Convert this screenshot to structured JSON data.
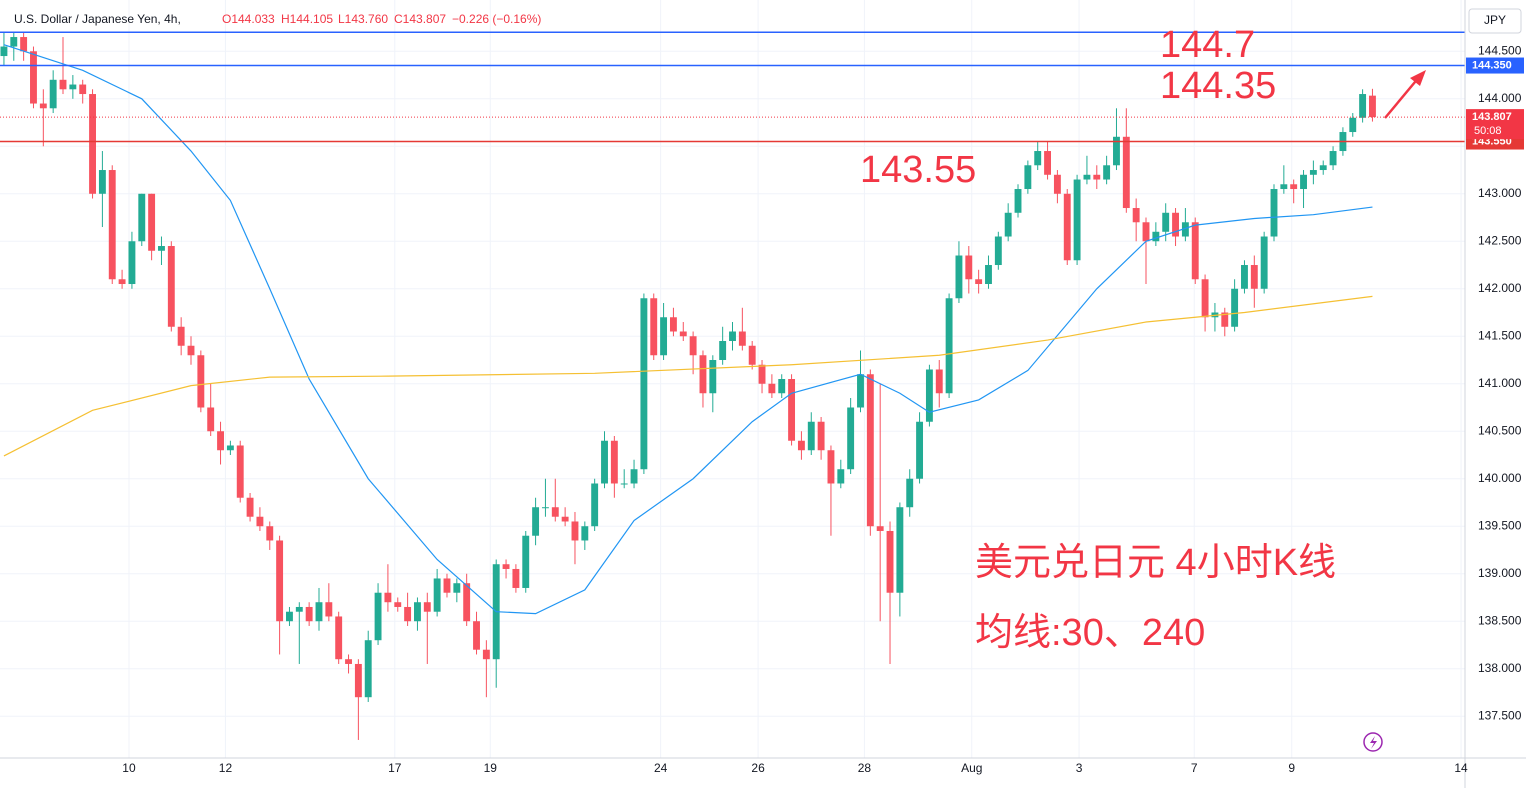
{
  "header": {
    "symbol": "U.S. Dollar / Japanese Yen, 4h,",
    "open": "O144.033",
    "high": "H144.105",
    "low": "L143.760",
    "close": "C143.807",
    "change": "−0.226 (−0.16%)"
  },
  "currency": "JPY",
  "chart_data": {
    "type": "candlestick",
    "up_color": "#22ab94",
    "down_color": "#f7525f",
    "xlim": [
      -0.4,
      148.4
    ],
    "ylim": [
      137.06,
      145.04
    ],
    "xticks": [
      {
        "value": 12.7,
        "label": "10"
      },
      {
        "value": 22.5,
        "label": "12"
      },
      {
        "value": 39.7,
        "label": "17"
      },
      {
        "value": 49.4,
        "label": "19"
      },
      {
        "value": 66.7,
        "label": "24"
      },
      {
        "value": 76.6,
        "label": "26"
      },
      {
        "value": 87.4,
        "label": "28"
      },
      {
        "value": 98.3,
        "label": "Aug"
      },
      {
        "value": 109.2,
        "label": "3"
      },
      {
        "value": 120.9,
        "label": "7"
      },
      {
        "value": 130.8,
        "label": "9"
      },
      {
        "value": 148,
        "label": "14"
      }
    ],
    "yticks": [
      {
        "value": 137.5,
        "label": "137.500"
      },
      {
        "value": 138,
        "label": "138.000"
      },
      {
        "value": 138.5,
        "label": "138.500"
      },
      {
        "value": 139,
        "label": "139.000"
      },
      {
        "value": 139.5,
        "label": "139.500"
      },
      {
        "value": 140,
        "label": "140.000"
      },
      {
        "value": 140.5,
        "label": "140.500"
      },
      {
        "value": 141,
        "label": "141.000"
      },
      {
        "value": 141.5,
        "label": "141.500"
      },
      {
        "value": 142,
        "label": "142.000"
      },
      {
        "value": 142.5,
        "label": "142.500"
      },
      {
        "value": 143,
        "label": "143.000"
      },
      {
        "value": 143.5,
        "label": "143.500"
      },
      {
        "value": 144,
        "label": "144.000"
      },
      {
        "value": 144.5,
        "label": "144.500"
      }
    ],
    "grid": true,
    "candles": [
      [
        144.45,
        144.7,
        144.35,
        144.55
      ],
      [
        144.55,
        144.7,
        144.4,
        144.65
      ],
      [
        144.65,
        144.7,
        144.4,
        144.5
      ],
      [
        144.5,
        144.55,
        143.9,
        143.95
      ],
      [
        143.95,
        144.1,
        143.5,
        143.9
      ],
      [
        143.9,
        144.3,
        143.85,
        144.2
      ],
      [
        144.2,
        144.65,
        144.05,
        144.1
      ],
      [
        144.1,
        144.25,
        144.0,
        144.15
      ],
      [
        144.15,
        144.2,
        143.95,
        144.05
      ],
      [
        144.05,
        144.1,
        142.95,
        143.0
      ],
      [
        143.0,
        143.45,
        142.65,
        143.25
      ],
      [
        143.25,
        143.3,
        142.05,
        142.1
      ],
      [
        142.1,
        142.2,
        142.0,
        142.05
      ],
      [
        142.05,
        142.6,
        142.0,
        142.5
      ],
      [
        142.5,
        143.0,
        142.45,
        143.0
      ],
      [
        143.0,
        143.0,
        142.3,
        142.4
      ],
      [
        142.4,
        142.55,
        142.25,
        142.45
      ],
      [
        142.45,
        142.5,
        141.55,
        141.6
      ],
      [
        141.6,
        141.7,
        141.3,
        141.4
      ],
      [
        141.4,
        141.5,
        141.2,
        141.3
      ],
      [
        141.3,
        141.35,
        140.7,
        140.75
      ],
      [
        140.75,
        141.0,
        140.45,
        140.5
      ],
      [
        140.5,
        140.6,
        140.15,
        140.3
      ],
      [
        140.3,
        140.4,
        140.25,
        140.35
      ],
      [
        140.35,
        140.4,
        139.75,
        139.8
      ],
      [
        139.8,
        139.85,
        139.55,
        139.6
      ],
      [
        139.6,
        139.7,
        139.45,
        139.5
      ],
      [
        139.5,
        139.55,
        139.25,
        139.35
      ],
      [
        139.35,
        139.4,
        138.15,
        138.5
      ],
      [
        138.5,
        138.65,
        138.45,
        138.6
      ],
      [
        138.6,
        138.7,
        138.05,
        138.65
      ],
      [
        138.65,
        138.7,
        138.45,
        138.5
      ],
      [
        138.5,
        138.85,
        138.4,
        138.7
      ],
      [
        138.7,
        138.9,
        138.5,
        138.55
      ],
      [
        138.55,
        138.6,
        138.05,
        138.1
      ],
      [
        138.1,
        138.15,
        137.95,
        138.05
      ],
      [
        138.05,
        138.1,
        137.25,
        137.7
      ],
      [
        137.7,
        138.4,
        137.65,
        138.3
      ],
      [
        138.3,
        138.9,
        138.25,
        138.8
      ],
      [
        138.8,
        139.1,
        138.6,
        138.7
      ],
      [
        138.7,
        138.75,
        138.6,
        138.65
      ],
      [
        138.65,
        138.8,
        138.45,
        138.5
      ],
      [
        138.5,
        138.75,
        138.4,
        138.7
      ],
      [
        138.7,
        138.8,
        138.05,
        138.6
      ],
      [
        138.6,
        139.05,
        138.55,
        138.95
      ],
      [
        138.95,
        139.0,
        138.75,
        138.8
      ],
      [
        138.8,
        138.95,
        138.7,
        138.9
      ],
      [
        138.9,
        139.0,
        138.45,
        138.5
      ],
      [
        138.5,
        138.6,
        138.15,
        138.2
      ],
      [
        138.2,
        138.3,
        137.7,
        138.1
      ],
      [
        138.1,
        139.15,
        137.8,
        139.1
      ],
      [
        139.1,
        139.15,
        138.95,
        139.05
      ],
      [
        139.05,
        139.1,
        138.8,
        138.85
      ],
      [
        138.85,
        139.45,
        138.8,
        139.4
      ],
      [
        139.4,
        139.8,
        139.3,
        139.7
      ],
      [
        139.7,
        140.0,
        139.6,
        139.7
      ],
      [
        139.7,
        140.0,
        139.55,
        139.6
      ],
      [
        139.6,
        139.7,
        139.5,
        139.55
      ],
      [
        139.55,
        139.65,
        139.1,
        139.35
      ],
      [
        139.35,
        139.55,
        139.25,
        139.5
      ],
      [
        139.5,
        140.0,
        139.45,
        139.95
      ],
      [
        139.95,
        140.5,
        139.9,
        140.4
      ],
      [
        140.4,
        140.45,
        139.8,
        139.95
      ],
      [
        139.95,
        140.1,
        139.9,
        139.95
      ],
      [
        139.95,
        140.2,
        139.9,
        140.1
      ],
      [
        140.1,
        141.95,
        140.05,
        141.9
      ],
      [
        141.9,
        141.95,
        141.25,
        141.3
      ],
      [
        141.3,
        141.85,
        141.25,
        141.7
      ],
      [
        141.7,
        141.8,
        141.5,
        141.55
      ],
      [
        141.55,
        141.65,
        141.45,
        141.5
      ],
      [
        141.5,
        141.55,
        141.1,
        141.3
      ],
      [
        141.3,
        141.35,
        140.75,
        140.9
      ],
      [
        140.9,
        141.3,
        140.7,
        141.25
      ],
      [
        141.25,
        141.6,
        141.2,
        141.45
      ],
      [
        141.45,
        141.65,
        141.35,
        141.55
      ],
      [
        141.55,
        141.8,
        141.35,
        141.4
      ],
      [
        141.4,
        141.45,
        141.15,
        141.2
      ],
      [
        141.2,
        141.25,
        140.9,
        141.0
      ],
      [
        141.0,
        141.1,
        140.85,
        140.9
      ],
      [
        140.9,
        141.1,
        140.85,
        141.05
      ],
      [
        141.05,
        141.1,
        140.35,
        140.4
      ],
      [
        140.4,
        140.5,
        140.2,
        140.3
      ],
      [
        140.3,
        140.7,
        140.25,
        140.6
      ],
      [
        140.6,
        140.65,
        140.2,
        140.3
      ],
      [
        140.3,
        140.35,
        139.4,
        139.95
      ],
      [
        139.95,
        140.2,
        139.9,
        140.1
      ],
      [
        140.1,
        140.85,
        140.05,
        140.75
      ],
      [
        140.75,
        141.35,
        140.7,
        141.1
      ],
      [
        141.1,
        141.15,
        139.4,
        139.5
      ],
      [
        139.5,
        141.0,
        138.5,
        139.45
      ],
      [
        139.45,
        139.55,
        138.05,
        138.8
      ],
      [
        138.8,
        139.75,
        138.55,
        139.7
      ],
      [
        139.7,
        140.1,
        139.6,
        140.0
      ],
      [
        140.0,
        140.7,
        139.95,
        140.6
      ],
      [
        140.6,
        141.2,
        140.55,
        141.15
      ],
      [
        141.15,
        141.25,
        140.75,
        140.9
      ],
      [
        140.9,
        141.95,
        140.85,
        141.9
      ],
      [
        141.9,
        142.5,
        141.85,
        142.35
      ],
      [
        142.35,
        142.45,
        141.95,
        142.1
      ],
      [
        142.1,
        142.2,
        141.95,
        142.05
      ],
      [
        142.05,
        142.35,
        142.0,
        142.25
      ],
      [
        142.25,
        142.6,
        142.2,
        142.55
      ],
      [
        142.55,
        142.9,
        142.5,
        142.8
      ],
      [
        142.8,
        143.1,
        142.75,
        143.05
      ],
      [
        143.05,
        143.35,
        143.0,
        143.3
      ],
      [
        143.3,
        143.55,
        143.25,
        143.45
      ],
      [
        143.45,
        143.55,
        143.15,
        143.2
      ],
      [
        143.2,
        143.25,
        142.9,
        143.0
      ],
      [
        143.0,
        143.05,
        142.25,
        142.3
      ],
      [
        142.3,
        143.2,
        142.25,
        143.15
      ],
      [
        143.15,
        143.4,
        143.1,
        143.2
      ],
      [
        143.2,
        143.3,
        143.05,
        143.15
      ],
      [
        143.15,
        143.4,
        143.1,
        143.3
      ],
      [
        143.3,
        143.9,
        143.25,
        143.6
      ],
      [
        143.6,
        143.9,
        142.8,
        142.85
      ],
      [
        142.85,
        142.95,
        142.5,
        142.7
      ],
      [
        142.7,
        142.75,
        142.05,
        142.5
      ],
      [
        142.5,
        142.7,
        142.45,
        142.6
      ],
      [
        142.6,
        142.9,
        142.5,
        142.8
      ],
      [
        142.8,
        142.85,
        142.45,
        142.55
      ],
      [
        142.55,
        142.85,
        142.5,
        142.7
      ],
      [
        142.7,
        142.75,
        142.05,
        142.1
      ],
      [
        142.1,
        142.15,
        141.55,
        141.7
      ],
      [
        141.7,
        141.85,
        141.55,
        141.75
      ],
      [
        141.75,
        141.8,
        141.5,
        141.6
      ],
      [
        141.6,
        142.1,
        141.55,
        142.0
      ],
      [
        142.0,
        142.3,
        141.95,
        142.25
      ],
      [
        142.25,
        142.35,
        141.8,
        142.0
      ],
      [
        142.0,
        142.6,
        141.95,
        142.55
      ],
      [
        142.55,
        143.1,
        142.5,
        143.05
      ],
      [
        143.05,
        143.3,
        143.0,
        143.1
      ],
      [
        143.1,
        143.15,
        142.9,
        143.05
      ],
      [
        143.05,
        143.25,
        142.85,
        143.2
      ],
      [
        143.2,
        143.35,
        143.1,
        143.25
      ],
      [
        143.25,
        143.35,
        143.2,
        143.3
      ],
      [
        143.3,
        143.5,
        143.25,
        143.45
      ],
      [
        143.45,
        143.7,
        143.4,
        143.65
      ],
      [
        143.65,
        143.85,
        143.6,
        143.8
      ],
      [
        143.8,
        144.1,
        143.75,
        144.05
      ],
      [
        144.033,
        144.105,
        143.76,
        143.807
      ]
    ],
    "series": [
      {
        "color": "#2196f3",
        "x": [
          0,
          8,
          14,
          19,
          23,
          27,
          31,
          37,
          44,
          50,
          54,
          59,
          64,
          70,
          76,
          80,
          87,
          91,
          94,
          99,
          104,
          111,
          116,
          121,
          127,
          133,
          139
        ],
        "values": [
          144.57,
          144.3,
          144.0,
          143.45,
          142.93,
          142.0,
          141.05,
          140.0,
          139.15,
          138.6,
          138.58,
          138.83,
          139.56,
          140.0,
          140.6,
          140.9,
          141.1,
          140.9,
          140.7,
          140.83,
          141.14,
          142.0,
          142.5,
          142.67,
          142.74,
          142.78,
          142.86
        ]
      },
      {
        "color": "#f5c033",
        "x": [
          0,
          9,
          19,
          27,
          39,
          60,
          80,
          95,
          106,
          116,
          126,
          139
        ],
        "values": [
          140.24,
          140.72,
          140.98,
          141.07,
          141.08,
          141.11,
          141.2,
          141.3,
          141.46,
          141.65,
          141.75,
          141.92
        ]
      }
    ],
    "levels": [
      {
        "value": 144.7,
        "color": "#2962ff"
      },
      {
        "value": 144.35,
        "label": "144.350",
        "color": "#2962ff"
      },
      {
        "value": 143.55,
        "label": "143.550",
        "color": "#e53935"
      }
    ],
    "last_price": {
      "value": 143.807,
      "label": "143.807",
      "countdown": "50:08",
      "color": "#f23645"
    },
    "annotations": [
      "144.7",
      "144.35",
      "143.55",
      "美元兑日元 4小时K线",
      "均线:30、240"
    ]
  }
}
